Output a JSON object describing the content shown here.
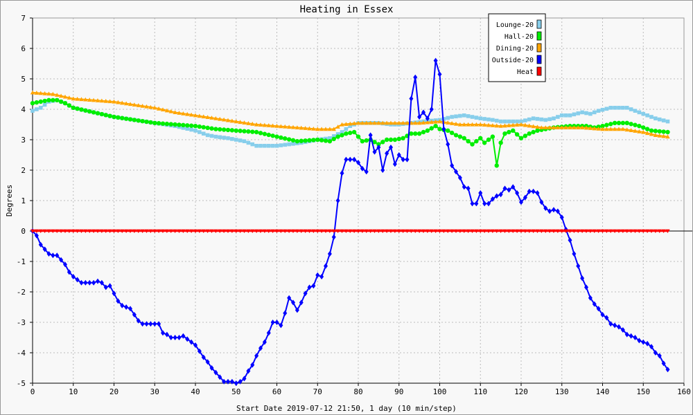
{
  "chart_data": {
    "type": "line",
    "title": "Heating in Essex",
    "xlabel": "Start Date 2019-07-12 21:50, 1 day (10 min/step)",
    "ylabel": "Degrees",
    "xlim": [
      0,
      160
    ],
    "ylim": [
      -5,
      7
    ],
    "x_ticks": [
      0,
      10,
      20,
      30,
      40,
      50,
      60,
      70,
      80,
      90,
      100,
      110,
      120,
      130,
      140,
      150,
      160
    ],
    "y_ticks": [
      -5,
      -4,
      -3,
      -2,
      -1,
      0,
      1,
      2,
      3,
      4,
      5,
      6,
      7
    ],
    "grid": true,
    "legend_position": "top-right",
    "series": [
      {
        "name": "Lounge-20",
        "color": "#87ceeb",
        "marker": "square",
        "points": [
          [
            0,
            3.95
          ],
          [
            2,
            4.05
          ],
          [
            4,
            4.25
          ],
          [
            6,
            4.3
          ],
          [
            8,
            4.2
          ],
          [
            10,
            4.05
          ],
          [
            15,
            3.9
          ],
          [
            20,
            3.75
          ],
          [
            25,
            3.65
          ],
          [
            30,
            3.55
          ],
          [
            35,
            3.45
          ],
          [
            40,
            3.3
          ],
          [
            43,
            3.15
          ],
          [
            45,
            3.1
          ],
          [
            48,
            3.05
          ],
          [
            52,
            2.95
          ],
          [
            55,
            2.8
          ],
          [
            60,
            2.8
          ],
          [
            63,
            2.85
          ],
          [
            66,
            2.9
          ],
          [
            70,
            3.0
          ],
          [
            73,
            3.05
          ],
          [
            76,
            3.25
          ],
          [
            78,
            3.45
          ],
          [
            80,
            3.55
          ],
          [
            82,
            3.55
          ],
          [
            85,
            3.55
          ],
          [
            88,
            3.5
          ],
          [
            90,
            3.5
          ],
          [
            93,
            3.55
          ],
          [
            96,
            3.6
          ],
          [
            100,
            3.65
          ],
          [
            103,
            3.75
          ],
          [
            106,
            3.8
          ],
          [
            110,
            3.7
          ],
          [
            113,
            3.65
          ],
          [
            115,
            3.6
          ],
          [
            117,
            3.6
          ],
          [
            120,
            3.6
          ],
          [
            123,
            3.7
          ],
          [
            126,
            3.65
          ],
          [
            128,
            3.7
          ],
          [
            130,
            3.8
          ],
          [
            132,
            3.8
          ],
          [
            135,
            3.9
          ],
          [
            137,
            3.85
          ],
          [
            139,
            3.95
          ],
          [
            142,
            4.05
          ],
          [
            146,
            4.05
          ],
          [
            148,
            3.95
          ],
          [
            150,
            3.85
          ],
          [
            153,
            3.7
          ],
          [
            156,
            3.6
          ]
        ]
      },
      {
        "name": "Hall-20",
        "color": "#00ee00",
        "marker": "circle",
        "points": [
          [
            0,
            4.2
          ],
          [
            2,
            4.25
          ],
          [
            4,
            4.3
          ],
          [
            6,
            4.3
          ],
          [
            8,
            4.2
          ],
          [
            10,
            4.05
          ],
          [
            15,
            3.9
          ],
          [
            20,
            3.75
          ],
          [
            25,
            3.65
          ],
          [
            30,
            3.55
          ],
          [
            35,
            3.5
          ],
          [
            40,
            3.45
          ],
          [
            45,
            3.35
          ],
          [
            50,
            3.3
          ],
          [
            55,
            3.25
          ],
          [
            60,
            3.1
          ],
          [
            65,
            2.95
          ],
          [
            70,
            3.0
          ],
          [
            73,
            2.95
          ],
          [
            75,
            3.1
          ],
          [
            77,
            3.2
          ],
          [
            79,
            3.25
          ],
          [
            81,
            2.95
          ],
          [
            83,
            3.0
          ],
          [
            85,
            2.85
          ],
          [
            87,
            3.0
          ],
          [
            89,
            3.0
          ],
          [
            91,
            3.05
          ],
          [
            93,
            3.2
          ],
          [
            95,
            3.2
          ],
          [
            97,
            3.3
          ],
          [
            99,
            3.45
          ],
          [
            100,
            3.35
          ],
          [
            102,
            3.3
          ],
          [
            104,
            3.15
          ],
          [
            106,
            3.05
          ],
          [
            108,
            2.85
          ],
          [
            110,
            3.05
          ],
          [
            111,
            2.9
          ],
          [
            113,
            3.1
          ],
          [
            114,
            2.15
          ],
          [
            115,
            2.9
          ],
          [
            116,
            3.2
          ],
          [
            118,
            3.3
          ],
          [
            120,
            3.05
          ],
          [
            122,
            3.2
          ],
          [
            124,
            3.3
          ],
          [
            126,
            3.35
          ],
          [
            128,
            3.4
          ],
          [
            132,
            3.45
          ],
          [
            136,
            3.45
          ],
          [
            138,
            3.4
          ],
          [
            140,
            3.45
          ],
          [
            143,
            3.55
          ],
          [
            146,
            3.55
          ],
          [
            149,
            3.45
          ],
          [
            152,
            3.3
          ],
          [
            156,
            3.25
          ]
        ]
      },
      {
        "name": "Dining-20",
        "color": "#ffa500",
        "marker": "triangle",
        "points": [
          [
            0,
            4.55
          ],
          [
            5,
            4.5
          ],
          [
            10,
            4.35
          ],
          [
            15,
            4.3
          ],
          [
            20,
            4.25
          ],
          [
            25,
            4.15
          ],
          [
            30,
            4.05
          ],
          [
            35,
            3.9
          ],
          [
            40,
            3.8
          ],
          [
            45,
            3.7
          ],
          [
            50,
            3.6
          ],
          [
            55,
            3.5
          ],
          [
            60,
            3.45
          ],
          [
            65,
            3.4
          ],
          [
            70,
            3.35
          ],
          [
            74,
            3.35
          ],
          [
            76,
            3.5
          ],
          [
            80,
            3.55
          ],
          [
            85,
            3.55
          ],
          [
            90,
            3.55
          ],
          [
            95,
            3.55
          ],
          [
            100,
            3.6
          ],
          [
            105,
            3.5
          ],
          [
            110,
            3.5
          ],
          [
            115,
            3.45
          ],
          [
            120,
            3.5
          ],
          [
            125,
            3.4
          ],
          [
            130,
            3.4
          ],
          [
            135,
            3.4
          ],
          [
            140,
            3.35
          ],
          [
            145,
            3.35
          ],
          [
            150,
            3.25
          ],
          [
            153,
            3.15
          ],
          [
            156,
            3.1
          ]
        ]
      },
      {
        "name": "Outside-20",
        "color": "#0000ff",
        "marker": "diamond",
        "points": [
          [
            0,
            0.0
          ],
          [
            1,
            -0.15
          ],
          [
            2,
            -0.45
          ],
          [
            3,
            -0.6
          ],
          [
            4,
            -0.75
          ],
          [
            5,
            -0.8
          ],
          [
            6,
            -0.8
          ],
          [
            7,
            -0.95
          ],
          [
            8,
            -1.1
          ],
          [
            9,
            -1.35
          ],
          [
            10,
            -1.5
          ],
          [
            11,
            -1.6
          ],
          [
            12,
            -1.7
          ],
          [
            13,
            -1.7
          ],
          [
            14,
            -1.7
          ],
          [
            15,
            -1.7
          ],
          [
            16,
            -1.65
          ],
          [
            17,
            -1.7
          ],
          [
            18,
            -1.85
          ],
          [
            19,
            -1.8
          ],
          [
            20,
            -2.05
          ],
          [
            21,
            -2.3
          ],
          [
            22,
            -2.45
          ],
          [
            23,
            -2.5
          ],
          [
            24,
            -2.55
          ],
          [
            25,
            -2.75
          ],
          [
            26,
            -2.95
          ],
          [
            27,
            -3.05
          ],
          [
            28,
            -3.05
          ],
          [
            29,
            -3.05
          ],
          [
            30,
            -3.05
          ],
          [
            31,
            -3.05
          ],
          [
            32,
            -3.35
          ],
          [
            33,
            -3.4
          ],
          [
            34,
            -3.5
          ],
          [
            35,
            -3.5
          ],
          [
            36,
            -3.5
          ],
          [
            37,
            -3.45
          ],
          [
            38,
            -3.55
          ],
          [
            39,
            -3.65
          ],
          [
            40,
            -3.75
          ],
          [
            41,
            -3.95
          ],
          [
            42,
            -4.15
          ],
          [
            43,
            -4.3
          ],
          [
            44,
            -4.5
          ],
          [
            45,
            -4.65
          ],
          [
            46,
            -4.8
          ],
          [
            47,
            -4.95
          ],
          [
            48,
            -4.95
          ],
          [
            49,
            -4.95
          ],
          [
            50,
            -5.0
          ],
          [
            51,
            -4.95
          ],
          [
            52,
            -4.85
          ],
          [
            53,
            -4.6
          ],
          [
            54,
            -4.4
          ],
          [
            55,
            -4.1
          ],
          [
            56,
            -3.85
          ],
          [
            57,
            -3.65
          ],
          [
            58,
            -3.35
          ],
          [
            59,
            -3.0
          ],
          [
            60,
            -3.0
          ],
          [
            61,
            -3.1
          ],
          [
            62,
            -2.7
          ],
          [
            63,
            -2.2
          ],
          [
            64,
            -2.35
          ],
          [
            65,
            -2.6
          ],
          [
            66,
            -2.35
          ],
          [
            67,
            -2.05
          ],
          [
            68,
            -1.85
          ],
          [
            69,
            -1.8
          ],
          [
            70,
            -1.45
          ],
          [
            71,
            -1.5
          ],
          [
            72,
            -1.15
          ],
          [
            73,
            -0.75
          ],
          [
            74,
            -0.2
          ],
          [
            75,
            1.0
          ],
          [
            76,
            1.9
          ],
          [
            77,
            2.35
          ],
          [
            78,
            2.35
          ],
          [
            79,
            2.35
          ],
          [
            80,
            2.25
          ],
          [
            81,
            2.05
          ],
          [
            82,
            1.95
          ],
          [
            83,
            3.15
          ],
          [
            84,
            2.6
          ],
          [
            85,
            2.75
          ],
          [
            86,
            2.0
          ],
          [
            87,
            2.55
          ],
          [
            88,
            2.75
          ],
          [
            89,
            2.2
          ],
          [
            90,
            2.5
          ],
          [
            91,
            2.35
          ],
          [
            92,
            2.35
          ],
          [
            93,
            4.35
          ],
          [
            94,
            5.05
          ],
          [
            95,
            3.75
          ],
          [
            96,
            3.9
          ],
          [
            97,
            3.7
          ],
          [
            98,
            4.0
          ],
          [
            99,
            5.6
          ],
          [
            100,
            5.15
          ],
          [
            101,
            3.35
          ],
          [
            102,
            2.85
          ],
          [
            103,
            2.15
          ],
          [
            104,
            1.95
          ],
          [
            105,
            1.75
          ],
          [
            106,
            1.45
          ],
          [
            107,
            1.4
          ],
          [
            108,
            0.9
          ],
          [
            109,
            0.9
          ],
          [
            110,
            1.25
          ],
          [
            111,
            0.9
          ],
          [
            112,
            0.9
          ],
          [
            113,
            1.05
          ],
          [
            114,
            1.15
          ],
          [
            115,
            1.2
          ],
          [
            116,
            1.4
          ],
          [
            117,
            1.35
          ],
          [
            118,
            1.45
          ],
          [
            119,
            1.25
          ],
          [
            120,
            0.95
          ],
          [
            121,
            1.1
          ],
          [
            122,
            1.3
          ],
          [
            123,
            1.3
          ],
          [
            124,
            1.25
          ],
          [
            125,
            0.95
          ],
          [
            126,
            0.75
          ],
          [
            127,
            0.65
          ],
          [
            128,
            0.7
          ],
          [
            129,
            0.65
          ],
          [
            130,
            0.45
          ],
          [
            131,
            0.05
          ],
          [
            132,
            -0.3
          ],
          [
            133,
            -0.75
          ],
          [
            134,
            -1.15
          ],
          [
            135,
            -1.55
          ],
          [
            136,
            -1.85
          ],
          [
            137,
            -2.2
          ],
          [
            138,
            -2.4
          ],
          [
            139,
            -2.55
          ],
          [
            140,
            -2.75
          ],
          [
            141,
            -2.85
          ],
          [
            142,
            -3.05
          ],
          [
            143,
            -3.1
          ],
          [
            144,
            -3.15
          ],
          [
            145,
            -3.25
          ],
          [
            146,
            -3.4
          ],
          [
            147,
            -3.45
          ],
          [
            148,
            -3.5
          ],
          [
            149,
            -3.6
          ],
          [
            150,
            -3.65
          ],
          [
            151,
            -3.7
          ],
          [
            152,
            -3.8
          ],
          [
            153,
            -4.0
          ],
          [
            154,
            -4.1
          ],
          [
            155,
            -4.35
          ],
          [
            156,
            -4.55
          ]
        ]
      },
      {
        "name": "Heat",
        "color": "#ff0000",
        "marker": "triangle-down",
        "points": [
          [
            0,
            0
          ],
          [
            156,
            0
          ]
        ]
      }
    ]
  }
}
